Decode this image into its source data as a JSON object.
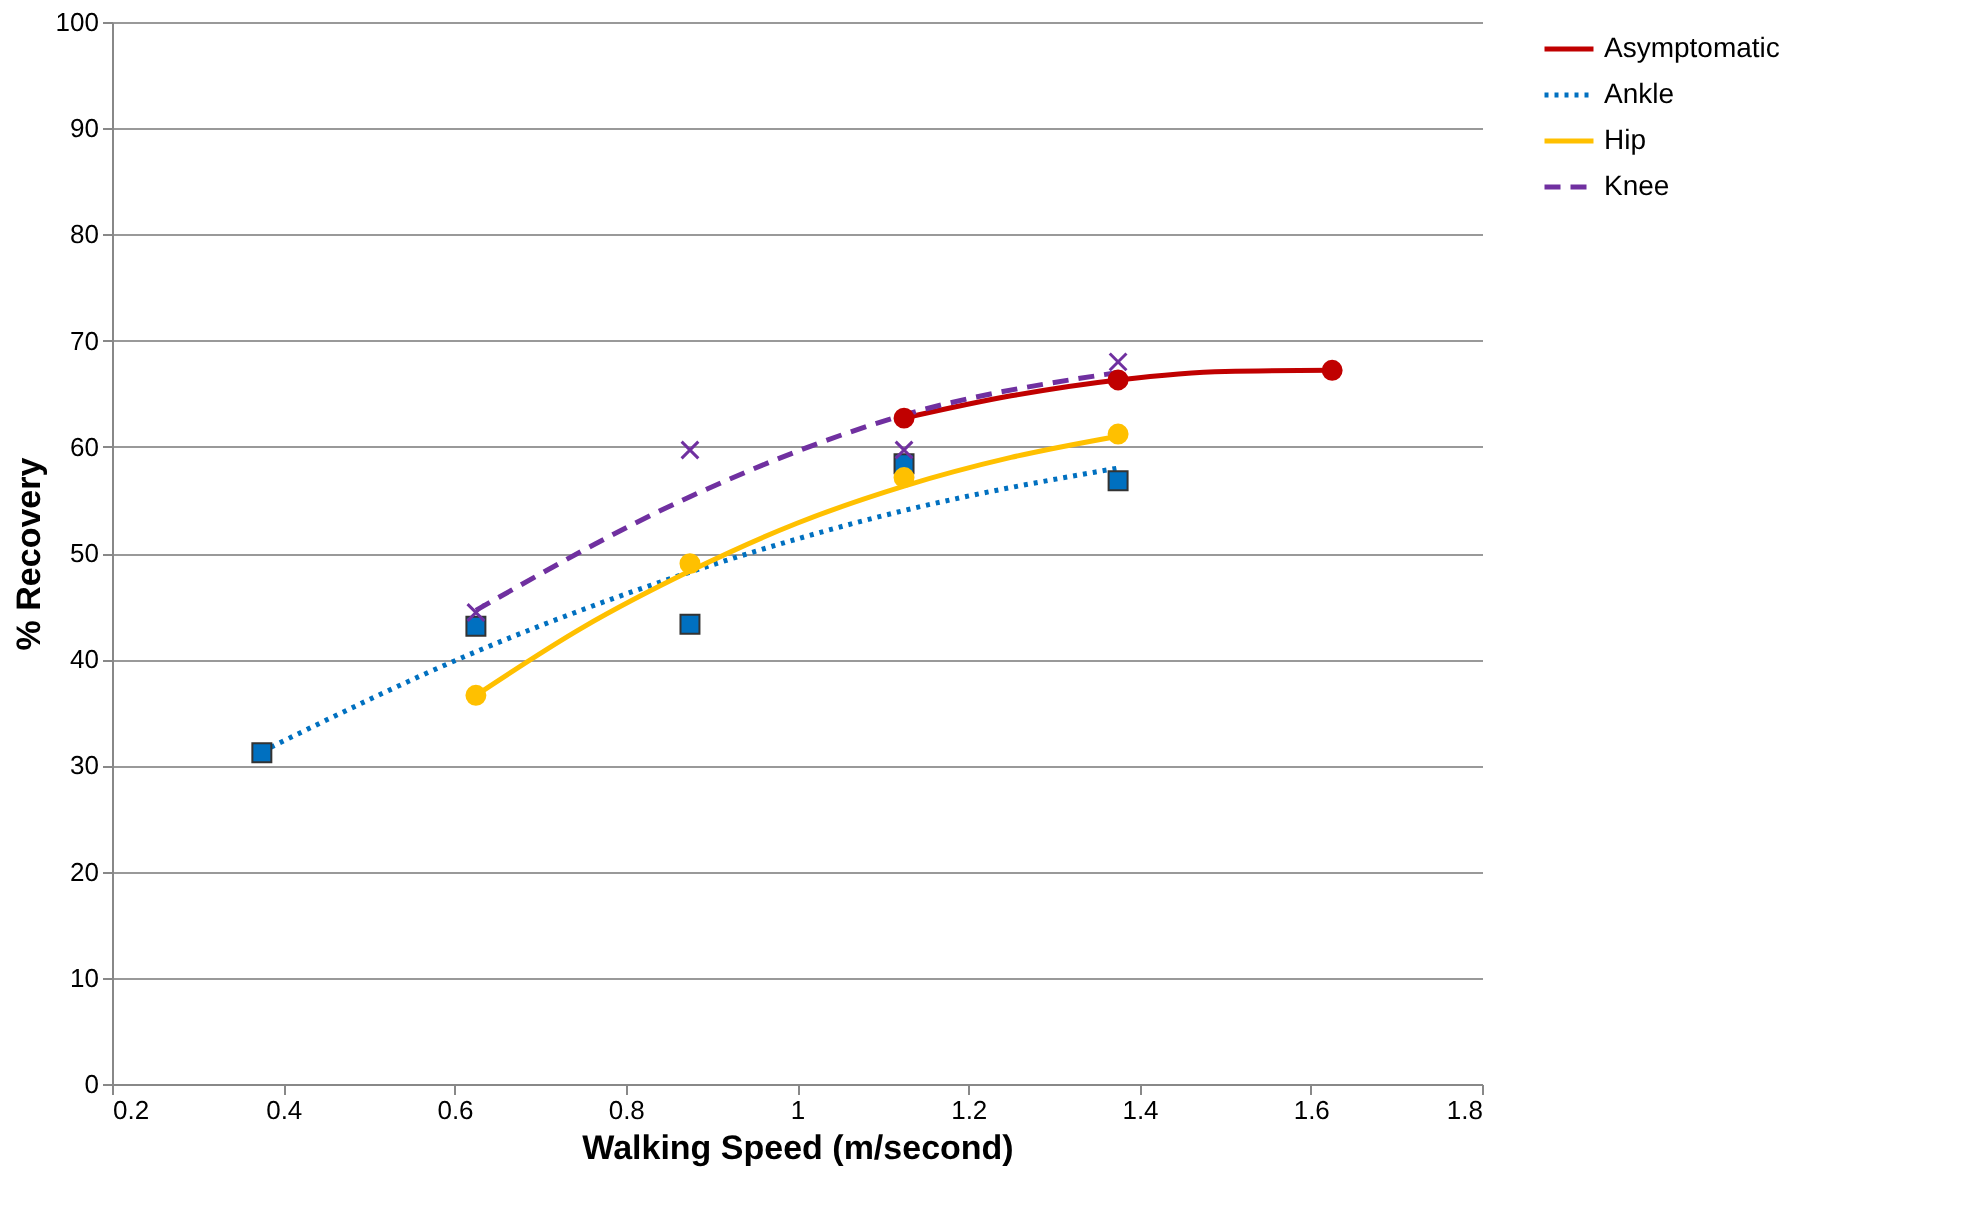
{
  "chart_data": {
    "type": "scatter",
    "xlabel": "Walking Speed (m/second)",
    "ylabel": "% Recovery",
    "xlim": [
      0.2,
      1.8
    ],
    "xticks": [
      0.2,
      0.4,
      0.6,
      0.8,
      {
        "value": 1,
        "label": "1"
      },
      1.2,
      1.4,
      1.6,
      1.8
    ],
    "ylim": [
      0,
      100
    ],
    "yticks": [
      0,
      10,
      20,
      30,
      40,
      50,
      60,
      70,
      80,
      90,
      100
    ],
    "grid": "y",
    "legend": "right",
    "series": [
      {
        "type": "line",
        "name": "Asymptomatic",
        "color": "#c00000",
        "line_style": "solid",
        "marker": "none",
        "x": [
          1.125,
          1.25,
          1.375,
          1.5,
          1.625
        ],
        "values": [
          62.7,
          64.8,
          66.3,
          67.1,
          67.2
        ]
      },
      {
        "type": "line",
        "name": "Ankle",
        "color": "#0070c0",
        "line_style": "dotted",
        "marker": "none",
        "x": [
          0.375,
          0.625,
          0.875,
          1.125,
          1.375
        ],
        "values": [
          31.3,
          40.7,
          48.2,
          54.0,
          58.0
        ]
      },
      {
        "type": "line",
        "name": "Hip",
        "color": "#ffc000",
        "line_style": "solid",
        "marker": "none",
        "x": [
          0.625,
          0.75,
          0.875,
          1.0,
          1.125,
          1.25,
          1.375
        ],
        "values": [
          36.6,
          43.0,
          48.3,
          52.8,
          56.3,
          59.0,
          61.0
        ]
      },
      {
        "type": "line",
        "name": "Knee",
        "color": "#7030a0",
        "line_style": "dashed",
        "marker": "none",
        "x": [
          0.625,
          0.875,
          1.125,
          1.375
        ],
        "values": [
          44.6,
          55.3,
          63.0,
          67.0
        ]
      },
      {
        "type": "scatter",
        "color": "#c00000",
        "marker": "circle",
        "x": [
          1.125,
          1.375,
          1.625
        ],
        "values": [
          62.7,
          66.3,
          67.2
        ]
      },
      {
        "type": "scatter",
        "color": "#0070c0",
        "marker": "square",
        "x": [
          0.375,
          0.625,
          0.875,
          1.125,
          1.375
        ],
        "values": [
          31.2,
          43.1,
          43.3,
          58.4,
          56.8
        ]
      },
      {
        "type": "scatter",
        "color": "#ffc000",
        "marker": "circle",
        "x": [
          0.625,
          0.875,
          1.125,
          1.375
        ],
        "values": [
          36.6,
          49.0,
          57.1,
          61.2
        ]
      },
      {
        "type": "scatter",
        "color": "#7030a0",
        "marker": "cross",
        "x": [
          0.625,
          0.875,
          1.125,
          1.375
        ],
        "values": [
          44.4,
          59.7,
          59.7,
          68.0
        ]
      }
    ]
  }
}
